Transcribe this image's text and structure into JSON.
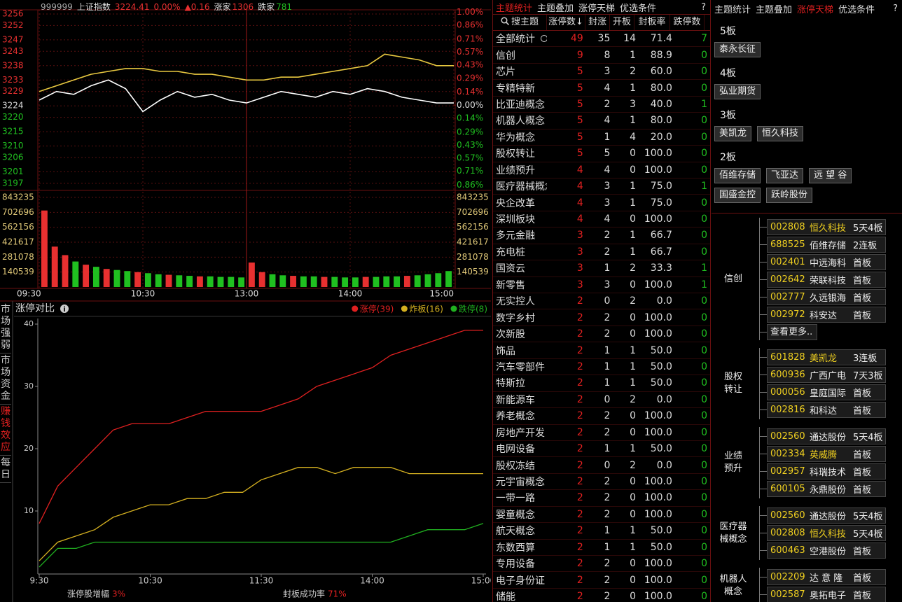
{
  "index_panel": {
    "header": {
      "code": "999999",
      "name": "上证指数",
      "price": "3224.41",
      "pct": "0.00%",
      "change": "▲0.16",
      "up_label": "涨家",
      "up_count": "1306",
      "down_label": "跌家",
      "down_count": "781"
    },
    "chart": {
      "type": "line",
      "x": [
        0,
        10,
        20,
        30,
        40,
        50,
        60,
        70,
        80,
        90,
        100,
        110,
        120,
        130,
        140,
        150,
        160,
        170,
        180,
        190,
        200,
        210,
        220,
        230,
        240
      ],
      "xlim": [
        0,
        240
      ],
      "xticks": [
        {
          "value": 0,
          "label": "09:30"
        },
        {
          "value": 60,
          "label": "10:30"
        },
        {
          "value": 120,
          "label": "13:00"
        },
        {
          "value": 180,
          "label": "14:00"
        },
        {
          "value": 240,
          "label": "15:00"
        }
      ],
      "ylim": [
        3196,
        3256
      ],
      "yticks": [
        3256,
        3252,
        3247,
        3243,
        3238,
        3233,
        3229,
        3224,
        3220,
        3215,
        3210,
        3206,
        3201,
        3197
      ],
      "y2lim": [
        -0.87,
        0.98
      ],
      "y2ticks": [
        {
          "value": 1.0,
          "label": "1.00%"
        },
        {
          "value": 0.86,
          "label": "0.86%"
        },
        {
          "value": 0.71,
          "label": "0.71%"
        },
        {
          "value": 0.57,
          "label": "0.57%"
        },
        {
          "value": 0.43,
          "label": "0.43%"
        },
        {
          "value": 0.29,
          "label": "0.29%"
        },
        {
          "value": 0.14,
          "label": "0.14%"
        },
        {
          "value": 0,
          "label": "0.00%"
        },
        {
          "value": -0.14,
          "label": "0.14%"
        },
        {
          "value": -0.29,
          "label": "0.29%"
        },
        {
          "value": -0.43,
          "label": "0.43%"
        },
        {
          "value": -0.57,
          "label": "0.57%"
        },
        {
          "value": -0.71,
          "label": "0.71%"
        },
        {
          "value": -0.86,
          "label": "0.86%"
        }
      ],
      "series": [
        {
          "color": "#e8c840",
          "values": [
            3229,
            3231,
            3233,
            3235,
            3236,
            3237,
            3237,
            3236,
            3236,
            3235,
            3235,
            3234,
            3233,
            3233,
            3234,
            3234,
            3235,
            3236,
            3237,
            3238,
            3242,
            3241,
            3240,
            3238,
            3238
          ]
        },
        {
          "color": "#ffffff",
          "values": [
            3226,
            3229,
            3228,
            3231,
            3233,
            3230,
            3222,
            3226,
            3229,
            3227,
            3228,
            3226,
            3225,
            3227,
            3229,
            3228,
            3227,
            3229,
            3228,
            3230,
            3229,
            3227,
            3226,
            3225,
            3225
          ]
        }
      ]
    },
    "volume": {
      "type": "bar",
      "x": [
        3,
        9,
        15,
        21,
        27,
        33,
        39,
        45,
        51,
        57,
        63,
        69,
        75,
        81,
        87,
        93,
        99,
        105,
        111,
        117,
        123,
        129,
        135,
        141,
        147,
        153,
        159,
        165,
        171,
        177,
        183,
        189,
        195,
        201,
        207,
        213,
        219,
        225,
        231,
        237
      ],
      "ylim": [
        0,
        843235
      ],
      "yticks": [
        843235,
        702696,
        562156,
        421617,
        281078,
        140539
      ],
      "series": [
        {
          "color": "#e83030",
          "values": [
            720000,
            380000,
            300000,
            null,
            210000,
            null,
            170000,
            null,
            null,
            140000,
            null,
            null,
            115000,
            null,
            null,
            100000,
            null,
            null,
            null,
            null,
            230000,
            140000,
            null,
            null,
            105000,
            null,
            null,
            95000,
            null,
            null,
            null,
            95000,
            null,
            null,
            null,
            105000,
            null,
            null,
            null,
            null
          ]
        },
        {
          "color": "#20c020",
          "values": [
            null,
            null,
            null,
            240000,
            null,
            190000,
            null,
            160000,
            150000,
            null,
            130000,
            120000,
            null,
            110000,
            105000,
            null,
            100000,
            95000,
            95000,
            90000,
            null,
            null,
            120000,
            110000,
            null,
            100000,
            100000,
            null,
            95000,
            90000,
            90000,
            null,
            95000,
            100000,
            100000,
            null,
            110000,
            120000,
            130000,
            150000
          ]
        }
      ]
    }
  },
  "left_tabs": [
    "市场强弱",
    "市场资金",
    "赚钱效应",
    "每日"
  ],
  "limit_chart": {
    "title": "涨停对比",
    "type": "line",
    "x": [
      0,
      10,
      20,
      30,
      40,
      50,
      60,
      70,
      80,
      90,
      100,
      110,
      120,
      130,
      140,
      150,
      160,
      170,
      180,
      190,
      200,
      210,
      220,
      230,
      240
    ],
    "xlim": [
      0,
      240
    ],
    "xticks": [
      {
        "value": 0,
        "label": "9:30"
      },
      {
        "value": 60,
        "label": "10:30"
      },
      {
        "value": 120,
        "label": "11:30"
      },
      {
        "value": 180,
        "label": "14:00"
      },
      {
        "value": 240,
        "label": "15:00"
      }
    ],
    "ylim": [
      0,
      40
    ],
    "yticks": [
      10,
      20,
      30,
      40
    ],
    "series": [
      {
        "name": "涨停(39)",
        "color": "#e02020",
        "values": [
          8,
          14,
          17,
          20,
          23,
          24,
          24,
          24,
          25,
          26,
          26,
          26,
          26,
          27,
          28,
          30,
          31,
          32,
          33,
          35,
          36,
          37,
          38,
          39,
          39
        ]
      },
      {
        "name": "炸板(16)",
        "color": "#d4b020",
        "values": [
          2,
          5,
          6,
          7,
          9,
          10,
          11,
          11,
          12,
          12,
          13,
          13,
          15,
          16,
          17,
          17,
          16,
          17,
          17,
          17,
          16,
          16,
          16,
          16,
          16
        ]
      },
      {
        "name": "跌停(8)",
        "color": "#20b020",
        "values": [
          1,
          4,
          4,
          5,
          5,
          5,
          5,
          5,
          5,
          5,
          5,
          5,
          5,
          5,
          5,
          5,
          5,
          5,
          5,
          5,
          6,
          7,
          7,
          7,
          8
        ]
      }
    ],
    "stats": [
      {
        "label": "涨停股增幅",
        "value": "3%"
      },
      {
        "label": "封板成功率",
        "value": "71%"
      }
    ]
  },
  "theme_table": {
    "tabs": [
      "主题统计",
      "主题叠加",
      "涨停天梯",
      "优选条件"
    ],
    "help": "?",
    "columns": [
      "搜主题",
      "涨停数↓",
      "封涨",
      "开板",
      "封板率",
      "跌停数"
    ],
    "rows": [
      [
        "全部统计",
        49,
        35,
        14,
        "71.4",
        7
      ],
      [
        "信创",
        9,
        8,
        1,
        "88.9",
        0
      ],
      [
        "芯片",
        5,
        3,
        2,
        "60.0",
        0
      ],
      [
        "专精特新",
        5,
        4,
        1,
        "80.0",
        0
      ],
      [
        "比亚迪概念",
        5,
        2,
        3,
        "40.0",
        1
      ],
      [
        "机器人概念",
        5,
        4,
        1,
        "80.0",
        0
      ],
      [
        "华为概念",
        5,
        1,
        4,
        "20.0",
        0
      ],
      [
        "股权转让",
        5,
        5,
        0,
        "100.0",
        0
      ],
      [
        "业绩预升",
        4,
        4,
        0,
        "100.0",
        0
      ],
      [
        "医疗器械概念",
        4,
        3,
        1,
        "75.0",
        1
      ],
      [
        "央企改革",
        4,
        3,
        1,
        "75.0",
        0
      ],
      [
        "深圳板块",
        4,
        4,
        0,
        "100.0",
        0
      ],
      [
        "多元金融",
        3,
        2,
        1,
        "66.7",
        0
      ],
      [
        "充电桩",
        3,
        2,
        1,
        "66.7",
        0
      ],
      [
        "国资云",
        3,
        1,
        2,
        "33.3",
        1
      ],
      [
        "新零售",
        3,
        3,
        0,
        "100.0",
        1
      ],
      [
        "无实控人",
        2,
        0,
        2,
        "0.0",
        0
      ],
      [
        "数字乡村",
        2,
        2,
        0,
        "100.0",
        0
      ],
      [
        "次新股",
        2,
        2,
        0,
        "100.0",
        0
      ],
      [
        "饰品",
        2,
        1,
        1,
        "50.0",
        0
      ],
      [
        "汽车零部件",
        2,
        1,
        1,
        "50.0",
        0
      ],
      [
        "特斯拉",
        2,
        1,
        1,
        "50.0",
        0
      ],
      [
        "新能源车",
        2,
        0,
        2,
        "0.0",
        0
      ],
      [
        "养老概念",
        2,
        2,
        0,
        "100.0",
        0
      ],
      [
        "房地产开发",
        2,
        2,
        0,
        "100.0",
        0
      ],
      [
        "电网设备",
        2,
        1,
        1,
        "50.0",
        0
      ],
      [
        "股权冻结",
        2,
        0,
        2,
        "0.0",
        0
      ],
      [
        "元宇宙概念",
        2,
        2,
        0,
        "100.0",
        0
      ],
      [
        "一带一路",
        2,
        2,
        0,
        "100.0",
        0
      ],
      [
        "婴童概念",
        2,
        2,
        0,
        "100.0",
        0
      ],
      [
        "航天概念",
        2,
        1,
        1,
        "50.0",
        0
      ],
      [
        "东数西算",
        2,
        1,
        1,
        "50.0",
        0
      ],
      [
        "专用设备",
        2,
        2,
        0,
        "100.0",
        0
      ],
      [
        "电子身份证",
        2,
        2,
        0,
        "100.0",
        0
      ],
      [
        "储能",
        2,
        2,
        0,
        "100.0",
        0
      ]
    ]
  },
  "ladder_panel": {
    "tabs": [
      "主题统计",
      "主题叠加",
      "涨停天梯",
      "优选条件"
    ],
    "help": "?",
    "ladder": [
      {
        "level": "5板",
        "stocks": [
          "泰永长征"
        ]
      },
      {
        "level": "4板",
        "stocks": [
          "弘业期货"
        ]
      },
      {
        "level": "3板",
        "stocks": [
          "美凯龙",
          "恒久科技"
        ]
      },
      {
        "level": "2板",
        "stocks": [
          "佰维存储",
          "飞亚达",
          "远 望 谷",
          "国盛金控",
          "跃岭股份"
        ]
      }
    ],
    "groups": [
      {
        "label": [
          "信创"
        ],
        "items": [
          {
            "code": "002808",
            "name": "恒久科技",
            "tag": "5天4板",
            "highlight": true
          },
          {
            "code": "688525",
            "name": "佰维存储",
            "tag": "2连板",
            "highlight": false
          },
          {
            "code": "002401",
            "name": "中远海科",
            "tag": "首板",
            "highlight": false
          },
          {
            "code": "002642",
            "name": "荣联科技",
            "tag": "首板",
            "highlight": false
          },
          {
            "code": "002777",
            "name": "久远银海",
            "tag": "首板",
            "highlight": false
          },
          {
            "code": "002972",
            "name": "科安达",
            "tag": "首板",
            "highlight": false
          }
        ],
        "more": "查看更多.."
      },
      {
        "label": [
          "股权",
          "转让"
        ],
        "items": [
          {
            "code": "601828",
            "name": "美凯龙",
            "tag": "3连板",
            "highlight": true
          },
          {
            "code": "600936",
            "name": "广西广电",
            "tag": "7天3板",
            "highlight": false
          },
          {
            "code": "000056",
            "name": "皇庭国际",
            "tag": "首板",
            "highlight": false
          },
          {
            "code": "002816",
            "name": "和科达",
            "tag": "首板",
            "highlight": false
          }
        ]
      },
      {
        "label": [
          "业绩",
          "预升"
        ],
        "items": [
          {
            "code": "002560",
            "name": "通达股份",
            "tag": "5天4板",
            "highlight": false
          },
          {
            "code": "002334",
            "name": "英威腾",
            "tag": "首板",
            "highlight": true
          },
          {
            "code": "002957",
            "name": "科瑞技术",
            "tag": "首板",
            "highlight": false
          },
          {
            "code": "600105",
            "name": "永鼎股份",
            "tag": "首板",
            "highlight": false
          }
        ]
      },
      {
        "label": [
          "医疗器",
          "械概念"
        ],
        "items": [
          {
            "code": "002560",
            "name": "通达股份",
            "tag": "5天4板",
            "highlight": false
          },
          {
            "code": "002808",
            "name": "恒久科技",
            "tag": "5天4板",
            "highlight": true
          },
          {
            "code": "600463",
            "name": "空港股份",
            "tag": "首板",
            "highlight": false
          }
        ]
      },
      {
        "label": [
          "机器人",
          "概念"
        ],
        "items": [
          {
            "code": "002209",
            "name": "达 意 隆",
            "tag": "首板",
            "highlight": false
          },
          {
            "code": "002587",
            "name": "奥拓电子",
            "tag": "首板",
            "highlight": false
          }
        ]
      }
    ]
  }
}
